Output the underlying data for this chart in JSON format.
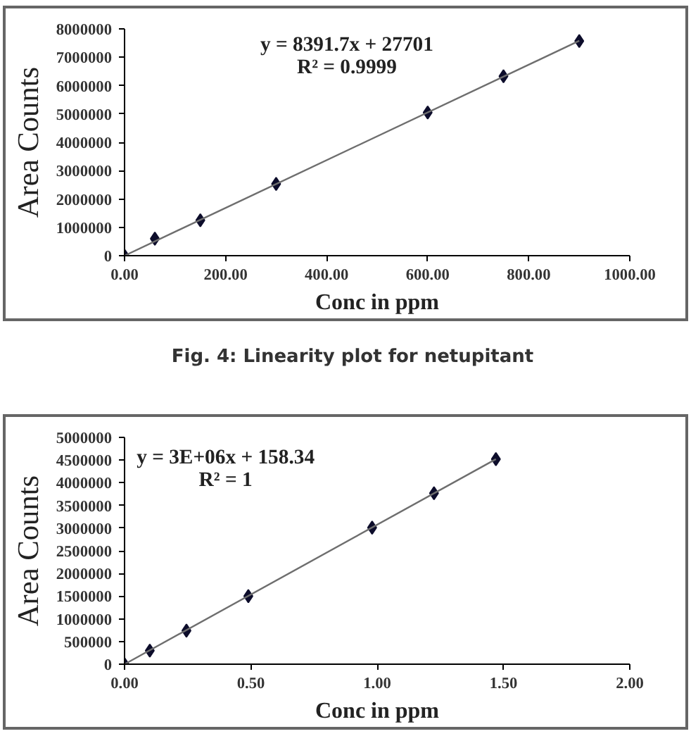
{
  "chart_data": [
    {
      "type": "scatter",
      "xlabel": "Conc in ppm",
      "ylabel": "Area Counts",
      "grid": false,
      "xlim": [
        0,
        1000
      ],
      "ylim": [
        0,
        8000000
      ],
      "xticks": [
        {
          "value": 0,
          "label": "0.00"
        },
        {
          "value": 200,
          "label": "200.00"
        },
        {
          "value": 400,
          "label": "400.00"
        },
        {
          "value": 600,
          "label": "600.00"
        },
        {
          "value": 800,
          "label": "800.00"
        },
        {
          "value": 1000,
          "label": "1000.00"
        }
      ],
      "yticks": [
        0,
        1000000,
        2000000,
        3000000,
        4000000,
        5000000,
        6000000,
        7000000,
        8000000
      ],
      "series": [
        {
          "marker": "diamond",
          "color": "#0d0d2b",
          "x": [
            0,
            60,
            150,
            300,
            600,
            750,
            900
          ],
          "values": [
            0,
            600000,
            1250000,
            2530000,
            5050000,
            6330000,
            7570000
          ]
        },
        {
          "type": "line",
          "marker": "none",
          "color": "#6e6e6e",
          "x": [
            0,
            900
          ],
          "values": [
            0,
            7580000
          ]
        }
      ],
      "annotations": [
        "y = 8391.7x + 27701",
        "R² = 0.9999",
        "Fig. 4: Linearity plot for netupitant"
      ]
    },
    {
      "type": "scatter",
      "xlabel": "Conc in ppm",
      "ylabel": "Area Counts",
      "grid": false,
      "xlim": [
        0,
        2
      ],
      "ylim": [
        0,
        5000000
      ],
      "xticks": [
        {
          "value": 0,
          "label": "0.00"
        },
        {
          "value": 0.5,
          "label": "0.50"
        },
        {
          "value": 1,
          "label": "1.00"
        },
        {
          "value": 1.5,
          "label": "1.50"
        },
        {
          "value": 2,
          "label": "2.00"
        }
      ],
      "yticks": [
        0,
        500000,
        1000000,
        1500000,
        2000000,
        2500000,
        3000000,
        3500000,
        4000000,
        4500000,
        5000000
      ],
      "series": [
        {
          "marker": "diamond",
          "color": "#0d0d2b",
          "x": [
            0,
            0.1,
            0.245,
            0.49,
            0.98,
            1.225,
            1.47
          ],
          "values": [
            0,
            300000,
            740000,
            1500000,
            3010000,
            3770000,
            4520000
          ]
        },
        {
          "type": "line",
          "marker": "none",
          "color": "#6e6e6e",
          "x": [
            0,
            1.47
          ],
          "values": [
            0,
            4520000
          ]
        }
      ],
      "annotations": [
        "y = 3E+06x + 158.34",
        "R² = 1"
      ]
    }
  ]
}
